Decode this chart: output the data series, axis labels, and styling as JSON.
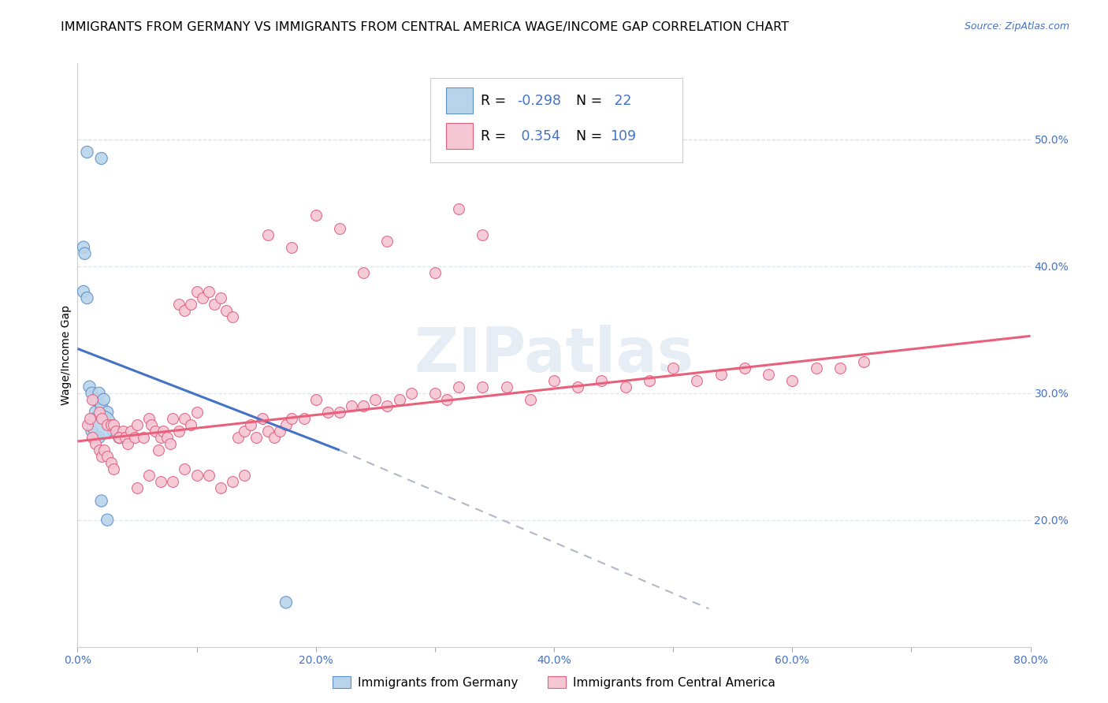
{
  "title": "IMMIGRANTS FROM GERMANY VS IMMIGRANTS FROM CENTRAL AMERICA WAGE/INCOME GAP CORRELATION CHART",
  "source": "Source: ZipAtlas.com",
  "ylabel": "Wage/Income Gap",
  "xlim": [
    0.0,
    0.8
  ],
  "ylim": [
    0.1,
    0.56
  ],
  "yticks_right": [
    0.2,
    0.3,
    0.4,
    0.5
  ],
  "yticklabels_right": [
    "20.0%",
    "30.0%",
    "40.0%",
    "50.0%"
  ],
  "xticks": [
    0.0,
    0.1,
    0.2,
    0.3,
    0.4,
    0.5,
    0.6,
    0.7,
    0.8
  ],
  "xticklabels": [
    "0.0%",
    "",
    "20.0%",
    "",
    "40.0%",
    "",
    "60.0%",
    "",
    "80.0%"
  ],
  "legend_r_germany": "-0.298",
  "legend_n_germany": "22",
  "legend_r_ca": "0.354",
  "legend_n_ca": "109",
  "color_germany_fill": "#b8d4ea",
  "color_germany_edge": "#5b8fc9",
  "color_ca_fill": "#f5c6d4",
  "color_ca_edge": "#e06080",
  "color_line_germany": "#4472c4",
  "color_line_ca": "#e8607a",
  "color_dashed": "#b0b8c8",
  "germany_x": [
    0.008,
    0.02,
    0.005,
    0.006,
    0.005,
    0.008,
    0.01,
    0.012,
    0.015,
    0.018,
    0.015,
    0.02,
    0.012,
    0.018,
    0.022,
    0.025,
    0.03,
    0.035,
    0.02,
    0.025,
    0.175,
    0.02
  ],
  "germany_y": [
    0.49,
    0.485,
    0.415,
    0.41,
    0.38,
    0.375,
    0.305,
    0.3,
    0.295,
    0.3,
    0.285,
    0.29,
    0.27,
    0.265,
    0.295,
    0.285,
    0.27,
    0.265,
    0.215,
    0.2,
    0.135,
    0.275
  ],
  "germany_sizes": [
    120,
    120,
    120,
    120,
    120,
    120,
    120,
    120,
    120,
    120,
    120,
    120,
    120,
    120,
    120,
    120,
    120,
    120,
    120,
    120,
    120,
    700
  ],
  "ca_x": [
    0.008,
    0.01,
    0.012,
    0.015,
    0.018,
    0.02,
    0.022,
    0.025,
    0.028,
    0.03,
    0.012,
    0.018,
    0.02,
    0.025,
    0.028,
    0.03,
    0.032,
    0.035,
    0.038,
    0.04,
    0.035,
    0.04,
    0.042,
    0.045,
    0.048,
    0.05,
    0.055,
    0.06,
    0.062,
    0.065,
    0.068,
    0.07,
    0.072,
    0.075,
    0.078,
    0.08,
    0.085,
    0.09,
    0.095,
    0.1,
    0.085,
    0.09,
    0.095,
    0.1,
    0.105,
    0.11,
    0.115,
    0.12,
    0.125,
    0.13,
    0.135,
    0.14,
    0.145,
    0.15,
    0.155,
    0.16,
    0.165,
    0.17,
    0.175,
    0.18,
    0.19,
    0.2,
    0.21,
    0.22,
    0.23,
    0.24,
    0.25,
    0.26,
    0.27,
    0.28,
    0.3,
    0.31,
    0.32,
    0.34,
    0.36,
    0.38,
    0.4,
    0.42,
    0.44,
    0.46,
    0.48,
    0.5,
    0.52,
    0.54,
    0.56,
    0.58,
    0.6,
    0.62,
    0.64,
    0.66,
    0.16,
    0.18,
    0.2,
    0.22,
    0.24,
    0.26,
    0.3,
    0.32,
    0.34,
    0.05,
    0.06,
    0.07,
    0.08,
    0.09,
    0.1,
    0.11,
    0.12,
    0.13,
    0.14
  ],
  "ca_y": [
    0.275,
    0.28,
    0.265,
    0.26,
    0.255,
    0.25,
    0.255,
    0.25,
    0.245,
    0.24,
    0.295,
    0.285,
    0.28,
    0.275,
    0.275,
    0.275,
    0.27,
    0.265,
    0.27,
    0.265,
    0.265,
    0.265,
    0.26,
    0.27,
    0.265,
    0.275,
    0.265,
    0.28,
    0.275,
    0.27,
    0.255,
    0.265,
    0.27,
    0.265,
    0.26,
    0.28,
    0.27,
    0.28,
    0.275,
    0.285,
    0.37,
    0.365,
    0.37,
    0.38,
    0.375,
    0.38,
    0.37,
    0.375,
    0.365,
    0.36,
    0.265,
    0.27,
    0.275,
    0.265,
    0.28,
    0.27,
    0.265,
    0.27,
    0.275,
    0.28,
    0.28,
    0.295,
    0.285,
    0.285,
    0.29,
    0.29,
    0.295,
    0.29,
    0.295,
    0.3,
    0.3,
    0.295,
    0.305,
    0.305,
    0.305,
    0.295,
    0.31,
    0.305,
    0.31,
    0.305,
    0.31,
    0.32,
    0.31,
    0.315,
    0.32,
    0.315,
    0.31,
    0.32,
    0.32,
    0.325,
    0.425,
    0.415,
    0.44,
    0.43,
    0.395,
    0.42,
    0.395,
    0.445,
    0.425,
    0.225,
    0.235,
    0.23,
    0.23,
    0.24,
    0.235,
    0.235,
    0.225,
    0.23,
    0.235
  ],
  "background_color": "#ffffff",
  "grid_color": "#dde4ea",
  "title_fontsize": 11.5,
  "axis_label_fontsize": 10,
  "tick_fontsize": 10,
  "watermark_text": "ZIPatlas",
  "watermark_color": "#c8d8e8",
  "watermark_alpha": 0.45,
  "trend_germany_x0": 0.0,
  "trend_germany_x1": 0.22,
  "trend_germany_y0": 0.335,
  "trend_germany_y1": 0.255,
  "trend_dash_x0": 0.22,
  "trend_dash_x1": 0.53,
  "trend_dash_y0": 0.255,
  "trend_dash_y1": 0.13,
  "trend_ca_x0": 0.0,
  "trend_ca_x1": 0.8,
  "trend_ca_y0": 0.262,
  "trend_ca_y1": 0.345
}
